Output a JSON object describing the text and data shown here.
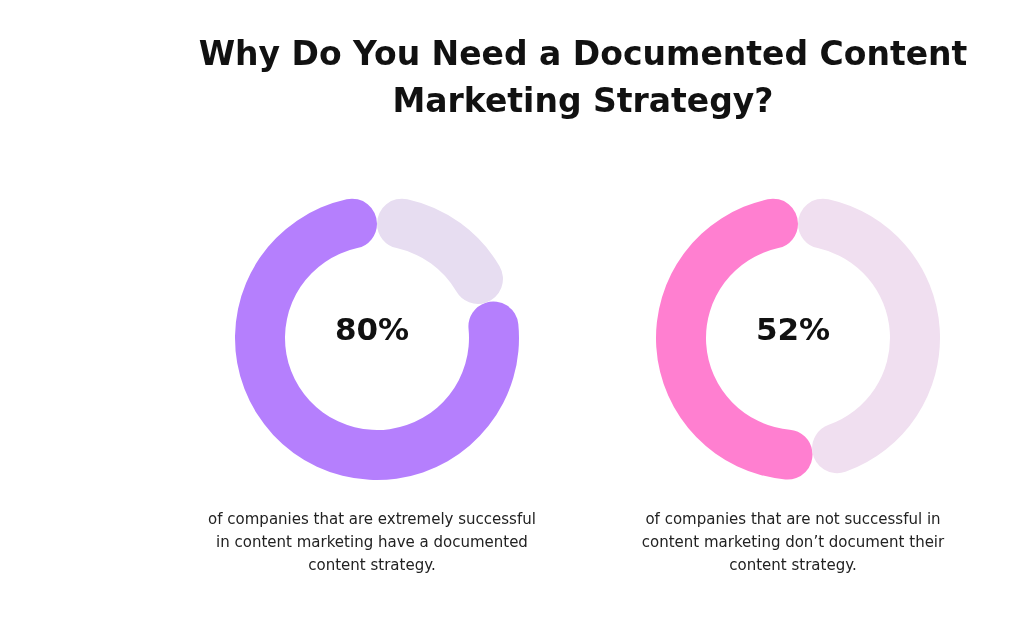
{
  "chart_data": [
    {
      "type": "donut",
      "title": "Why Do You Need a Documented Content Marketing Strategy?",
      "categories": [
        null,
        null
      ],
      "values": [
        80,
        20
      ],
      "colors": [
        "#b57ffd",
        "#e7ddf1"
      ],
      "value_labels": [
        "80%",
        null
      ],
      "annotations": [
        "of companies that are extremely successful in content marketing have a documented content strategy."
      ]
    },
    {
      "type": "donut",
      "categories": [
        null,
        null
      ],
      "values": [
        52,
        48
      ],
      "colors": [
        "#ff7fd0",
        "#f0dff0"
      ],
      "value_labels": [
        "52%",
        null
      ],
      "annotations": [
        "of companies that are not successful in content marketing don’t document their content strategy."
      ]
    }
  ]
}
